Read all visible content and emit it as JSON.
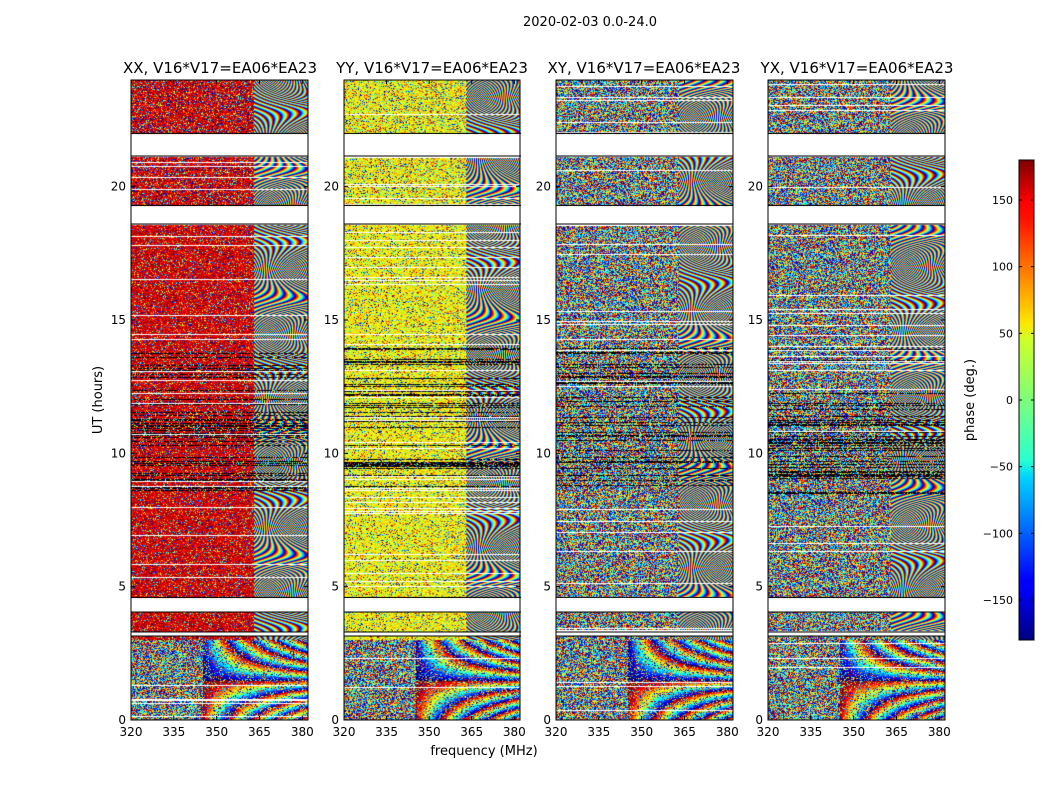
{
  "suptitle": "2020-02-03 0.0-24.0",
  "chart_data": {
    "type": "heatmap",
    "title": "2020-02-03 0.0-24.0",
    "xlabel": "frequency (MHz)",
    "ylabel": "UT (hours)",
    "xlim": [
      320,
      382
    ],
    "ylim": [
      0,
      24
    ],
    "xticks": [
      320,
      335,
      350,
      365,
      380
    ],
    "yticks": [
      0,
      5,
      10,
      15,
      20
    ],
    "panels": [
      {
        "title": "XX, V16*V17=EA06*EA23",
        "pol": "XX",
        "base_phase_deg": 150,
        "fringe_start_mhz": 363
      },
      {
        "title": "YY, V16*V17=EA06*EA23",
        "pol": "YY",
        "base_phase_deg": 45,
        "fringe_start_mhz": 363
      },
      {
        "title": "XY, V16*V17=EA06*EA23",
        "pol": "XY",
        "base_phase_deg": null,
        "fringe_start_mhz": 363
      },
      {
        "title": "YX, V16*V17=EA06*EA23",
        "pol": "YX",
        "base_phase_deg": null,
        "fringe_start_mhz": 363
      }
    ],
    "flagged_ut_ranges": [
      [
        21.15,
        22.0
      ],
      [
        18.6,
        19.3
      ],
      [
        4.05,
        4.6
      ],
      [
        3.15,
        3.3
      ]
    ],
    "colorbar": {
      "label": "phase (deg.)",
      "vmin": -180,
      "vmax": 180,
      "ticks": [
        150,
        100,
        50,
        0,
        -50,
        -100,
        -150
      ],
      "tick_labels": [
        "150",
        "100",
        "50",
        "0",
        "−50",
        "−100",
        "−150"
      ],
      "colormap": "jet"
    }
  }
}
